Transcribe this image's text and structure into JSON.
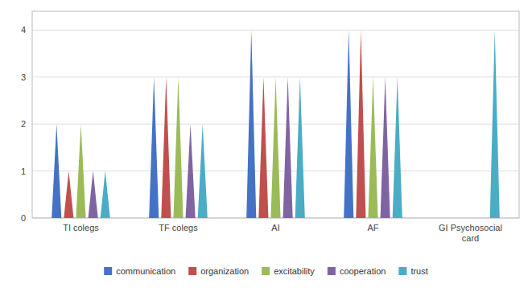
{
  "chart_data": {
    "type": "bar",
    "categories": [
      "TI colegs",
      "TF colegs",
      "AI",
      "AF",
      "GI Psychosocial\ncard"
    ],
    "series": [
      {
        "name": "communication",
        "color": "#4472C4",
        "values": [
          2.0,
          3.0,
          4.0,
          4.0,
          0.0
        ]
      },
      {
        "name": "organization",
        "color": "#C0504D",
        "values": [
          1.0,
          3.0,
          3.0,
          4.0,
          0.0
        ]
      },
      {
        "name": "excitability",
        "color": "#9BBB59",
        "values": [
          2.0,
          3.0,
          3.0,
          3.0,
          0.0
        ]
      },
      {
        "name": "cooperation",
        "color": "#8064A2",
        "values": [
          1.0,
          2.0,
          3.0,
          3.0,
          0.0
        ]
      },
      {
        "name": "trust",
        "color": "#4BACC6",
        "values": [
          1.0,
          2.0,
          3.0,
          3.0,
          4.0
        ]
      }
    ],
    "ylim": [
      0,
      4.4
    ],
    "yticks": [
      0,
      1,
      2,
      3,
      4
    ],
    "grid": true,
    "legend": "bottom"
  }
}
